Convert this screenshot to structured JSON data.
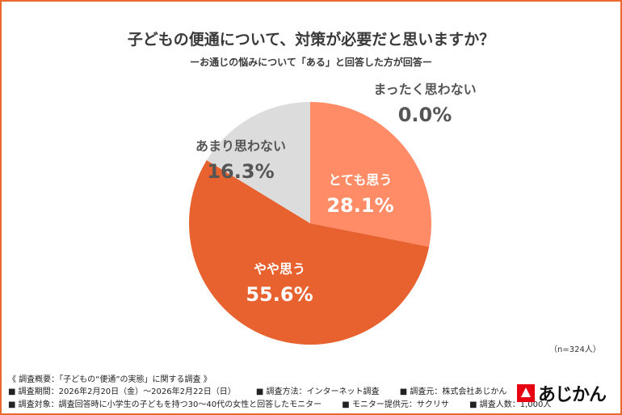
{
  "header": {
    "title": "子どもの便通について、対策が必要だと思いますか？",
    "subtitle": "ーお通じの悩みについて「ある」と回答した方が回答ー"
  },
  "chart_data": {
    "type": "pie",
    "start_angle_deg": 0,
    "direction": "clockwise",
    "slices": [
      {
        "label": "とても思う",
        "value": 28.1,
        "value_label": "28.1%",
        "color": "#FF8C66",
        "text_color": "#ffffff"
      },
      {
        "label": "やや思う",
        "value": 55.6,
        "value_label": "55.6%",
        "color": "#E8622F",
        "text_color": "#ffffff"
      },
      {
        "label": "あまり思わない",
        "value": 16.3,
        "value_label": "16.3%",
        "color": "#DCDCDC",
        "text_color": "#555555"
      },
      {
        "label": "まったく思わない",
        "value": 0.0,
        "value_label": "0.0%",
        "color": "#BBBBBB",
        "text_color": "#555555"
      }
    ]
  },
  "sample_size": "（n=324人）",
  "footer": {
    "line1": "《 調査概要：「子どもの“便通”の実態」に関する調査 》",
    "line2": [
      "■ 調査期間：2026年2月20日（金）〜2026年2月22日（日）",
      "■ 調査方法：インターネット調査",
      "■ 調査元：株式会社あじかん"
    ],
    "line3": [
      "■ 調査対象：調査回答時に小学生の子どもを持つ30〜40代の女性と回答したモニター",
      "■ モニター提供元：サクリサ",
      "■ 調査人数：1,000人"
    ]
  },
  "logo": {
    "text": "あじかん",
    "color": "#E60012"
  }
}
